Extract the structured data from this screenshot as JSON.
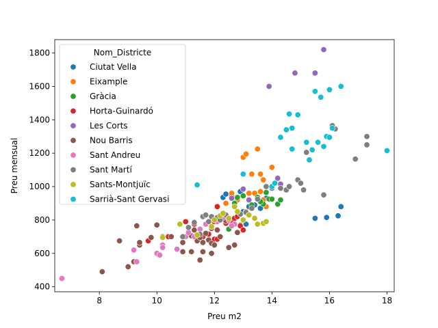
{
  "chart_data": {
    "type": "scatter",
    "title": "",
    "xlabel": "Preu m2",
    "ylabel": "Preu mensual",
    "xlim": [
      6.45,
      18.25
    ],
    "ylim": [
      370,
      1880
    ],
    "xticks": [
      "8",
      "10",
      "12",
      "14",
      "16",
      "18"
    ],
    "yticks": [
      "400",
      "600",
      "800",
      "1000",
      "1200",
      "1400",
      "1600",
      "1800"
    ],
    "grid": false,
    "legend_title": "Nom_Districte",
    "legend_position": "top-left",
    "series": [
      {
        "name": "Ciutat Vella",
        "color": "#1f77b4",
        "points": [
          [
            12.3,
            935
          ],
          [
            12.4,
            955
          ],
          [
            12.6,
            945
          ],
          [
            12.9,
            970
          ],
          [
            13.1,
            775
          ],
          [
            13.0,
            850
          ],
          [
            13.2,
            880
          ],
          [
            13.4,
            890
          ],
          [
            13.6,
            870
          ],
          [
            13.8,
            930
          ],
          [
            15.5,
            810
          ],
          [
            15.9,
            815
          ],
          [
            16.3,
            825
          ],
          [
            16.4,
            880
          ]
        ]
      },
      {
        "name": "Eixample",
        "color": "#ff7f0e",
        "points": [
          [
            12.4,
            900
          ],
          [
            12.6,
            960
          ],
          [
            12.8,
            920
          ],
          [
            13.0,
            1175
          ],
          [
            13.1,
            1195
          ],
          [
            13.3,
            1075
          ],
          [
            13.5,
            1225
          ],
          [
            13.6,
            1075
          ],
          [
            13.7,
            1040
          ],
          [
            13.2,
            960
          ],
          [
            13.4,
            960
          ],
          [
            13.6,
            970
          ],
          [
            13.7,
            920
          ],
          [
            13.1,
            850
          ],
          [
            14.0,
            1115
          ],
          [
            13.8,
            880
          ]
        ]
      },
      {
        "name": "Gràcia",
        "color": "#2ca02c",
        "points": [
          [
            12.5,
            745
          ],
          [
            12.7,
            900
          ],
          [
            12.8,
            935
          ],
          [
            13.0,
            945
          ],
          [
            13.3,
            890
          ],
          [
            13.5,
            935
          ],
          [
            13.7,
            895
          ],
          [
            13.8,
            965
          ],
          [
            13.9,
            925
          ],
          [
            14.0,
            925
          ],
          [
            14.2,
            895
          ],
          [
            14.3,
            920
          ],
          [
            13.6,
            910
          ],
          [
            12.9,
            770
          ]
        ]
      },
      {
        "name": "Horta-Guinardó",
        "color": "#d62728",
        "points": [
          [
            9.7,
            675
          ],
          [
            10.4,
            700
          ],
          [
            11.0,
            790
          ],
          [
            11.3,
            775
          ],
          [
            11.6,
            700
          ],
          [
            11.8,
            715
          ],
          [
            11.9,
            750
          ],
          [
            12.0,
            790
          ],
          [
            12.1,
            880
          ],
          [
            12.2,
            800
          ],
          [
            12.3,
            820
          ],
          [
            12.4,
            780
          ],
          [
            12.6,
            790
          ],
          [
            12.7,
            810
          ],
          [
            12.8,
            820
          ],
          [
            12.9,
            765
          ],
          [
            13.0,
            740
          ],
          [
            12.0,
            685
          ],
          [
            12.1,
            685
          ]
        ]
      },
      {
        "name": "Les Corts",
        "color": "#9467bd",
        "points": [
          [
            13.9,
            1600
          ],
          [
            14.8,
            1680
          ],
          [
            15.5,
            1680
          ],
          [
            15.8,
            1820
          ],
          [
            14.2,
            1050
          ],
          [
            14.3,
            1015
          ],
          [
            13.8,
            1000
          ],
          [
            13.2,
            920
          ],
          [
            13.0,
            985
          ],
          [
            12.6,
            930
          ]
        ]
      },
      {
        "name": "Nou Barris",
        "color": "#8c564b",
        "points": [
          [
            8.1,
            490
          ],
          [
            8.7,
            675
          ],
          [
            9.0,
            520
          ],
          [
            9.2,
            550
          ],
          [
            9.3,
            765
          ],
          [
            9.4,
            650
          ],
          [
            9.4,
            665
          ],
          [
            9.8,
            695
          ],
          [
            10.0,
            770
          ],
          [
            10.2,
            700
          ],
          [
            10.5,
            700
          ],
          [
            10.9,
            610
          ],
          [
            10.9,
            665
          ],
          [
            11.2,
            610
          ],
          [
            11.2,
            705
          ],
          [
            11.4,
            675
          ],
          [
            11.5,
            560
          ],
          [
            11.5,
            695
          ],
          [
            11.6,
            610
          ],
          [
            11.6,
            665
          ],
          [
            11.7,
            720
          ],
          [
            11.8,
            680
          ],
          [
            11.9,
            600
          ],
          [
            11.9,
            660
          ],
          [
            12.0,
            650
          ],
          [
            12.1,
            740
          ],
          [
            12.2,
            700
          ],
          [
            12.5,
            635
          ],
          [
            12.7,
            650
          ],
          [
            12.8,
            725
          ],
          [
            12.4,
            795
          ],
          [
            11.3,
            740
          ]
        ]
      },
      {
        "name": "Sant Andreu",
        "color": "#e377c2",
        "points": [
          [
            6.7,
            450
          ],
          [
            9.2,
            620
          ],
          [
            9.3,
            550
          ],
          [
            10.0,
            600
          ],
          [
            10.1,
            590
          ],
          [
            10.2,
            650
          ],
          [
            10.2,
            635
          ],
          [
            10.7,
            625
          ],
          [
            11.0,
            700
          ],
          [
            11.1,
            725
          ],
          [
            11.3,
            700
          ],
          [
            11.5,
            745
          ],
          [
            11.7,
            775
          ],
          [
            11.9,
            760
          ],
          [
            12.0,
            805
          ],
          [
            12.1,
            790
          ],
          [
            12.3,
            815
          ],
          [
            12.5,
            800
          ],
          [
            12.7,
            775
          ],
          [
            12.6,
            765
          ]
        ]
      },
      {
        "name": "Sant Martí",
        "color": "#7f7f7f",
        "points": [
          [
            10.9,
            700
          ],
          [
            11.1,
            755
          ],
          [
            11.3,
            785
          ],
          [
            11.5,
            715
          ],
          [
            11.6,
            820
          ],
          [
            11.7,
            830
          ],
          [
            11.8,
            790
          ],
          [
            11.9,
            820
          ],
          [
            12.1,
            815
          ],
          [
            12.2,
            800
          ],
          [
            12.4,
            830
          ],
          [
            12.9,
            835
          ],
          [
            13.1,
            845
          ],
          [
            13.3,
            870
          ],
          [
            13.5,
            925
          ],
          [
            13.8,
            1000
          ],
          [
            14.0,
            990
          ],
          [
            14.3,
            990
          ],
          [
            14.5,
            980
          ],
          [
            14.9,
            1040
          ],
          [
            15.0,
            1020
          ],
          [
            15.1,
            980
          ],
          [
            15.2,
            1205
          ],
          [
            15.8,
            950
          ],
          [
            16.1,
            1365
          ],
          [
            16.2,
            1345
          ],
          [
            16.9,
            1165
          ],
          [
            17.3,
            1250
          ],
          [
            17.3,
            1300
          ],
          [
            14.6,
            1000
          ]
        ]
      },
      {
        "name": "Sants-Montjuïc",
        "color": "#bcbd22",
        "points": [
          [
            10.2,
            695
          ],
          [
            10.8,
            775
          ],
          [
            11.4,
            710
          ],
          [
            11.9,
            760
          ],
          [
            12.0,
            800
          ],
          [
            12.2,
            825
          ],
          [
            12.3,
            840
          ],
          [
            12.5,
            810
          ],
          [
            12.8,
            850
          ],
          [
            13.0,
            800
          ],
          [
            13.2,
            830
          ],
          [
            13.4,
            810
          ],
          [
            13.5,
            775
          ],
          [
            13.7,
            780
          ],
          [
            13.8,
            790
          ],
          [
            12.7,
            880
          ]
        ]
      },
      {
        "name": "Sarrià-Sant Gervasi",
        "color": "#17becf",
        "points": [
          [
            11.4,
            1010
          ],
          [
            13.0,
            1075
          ],
          [
            14.0,
            1000
          ],
          [
            14.1,
            1020
          ],
          [
            14.3,
            1295
          ],
          [
            14.5,
            1340
          ],
          [
            14.6,
            1435
          ],
          [
            14.7,
            1225
          ],
          [
            14.7,
            1350
          ],
          [
            14.9,
            1430
          ],
          [
            15.2,
            1265
          ],
          [
            15.3,
            1160
          ],
          [
            15.4,
            1220
          ],
          [
            15.5,
            1570
          ],
          [
            15.6,
            1265
          ],
          [
            15.7,
            1535
          ],
          [
            15.8,
            1240
          ],
          [
            15.9,
            1300
          ],
          [
            16.0,
            1580
          ],
          [
            16.0,
            1295
          ],
          [
            16.1,
            1350
          ],
          [
            16.4,
            1600
          ],
          [
            18.0,
            1215
          ]
        ]
      }
    ]
  }
}
